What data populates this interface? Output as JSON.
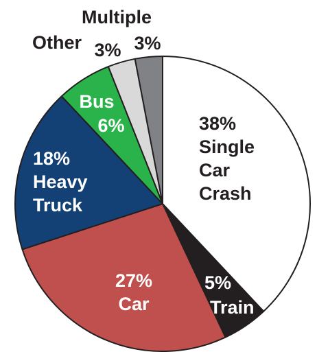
{
  "chart_data": {
    "type": "pie",
    "categories": [
      "Single Car Crash",
      "Train",
      "Car",
      "Heavy Truck",
      "Bus",
      "Other",
      "Multiple"
    ],
    "values": [
      38,
      5,
      27,
      18,
      6,
      3,
      3
    ],
    "value_labels": [
      "38%",
      "5%",
      "27%",
      "18%",
      "6%",
      "3%",
      "3%"
    ],
    "colors": [
      "#ffffff",
      "#231f20",
      "#c0504d",
      "#134075",
      "#2bb34b",
      "#d9d9d9",
      "#808285"
    ],
    "label_colors": [
      "#231f20",
      "#ffffff",
      "#ffffff",
      "#ffffff",
      "#ffffff",
      "#231f20",
      "#231f20"
    ]
  }
}
